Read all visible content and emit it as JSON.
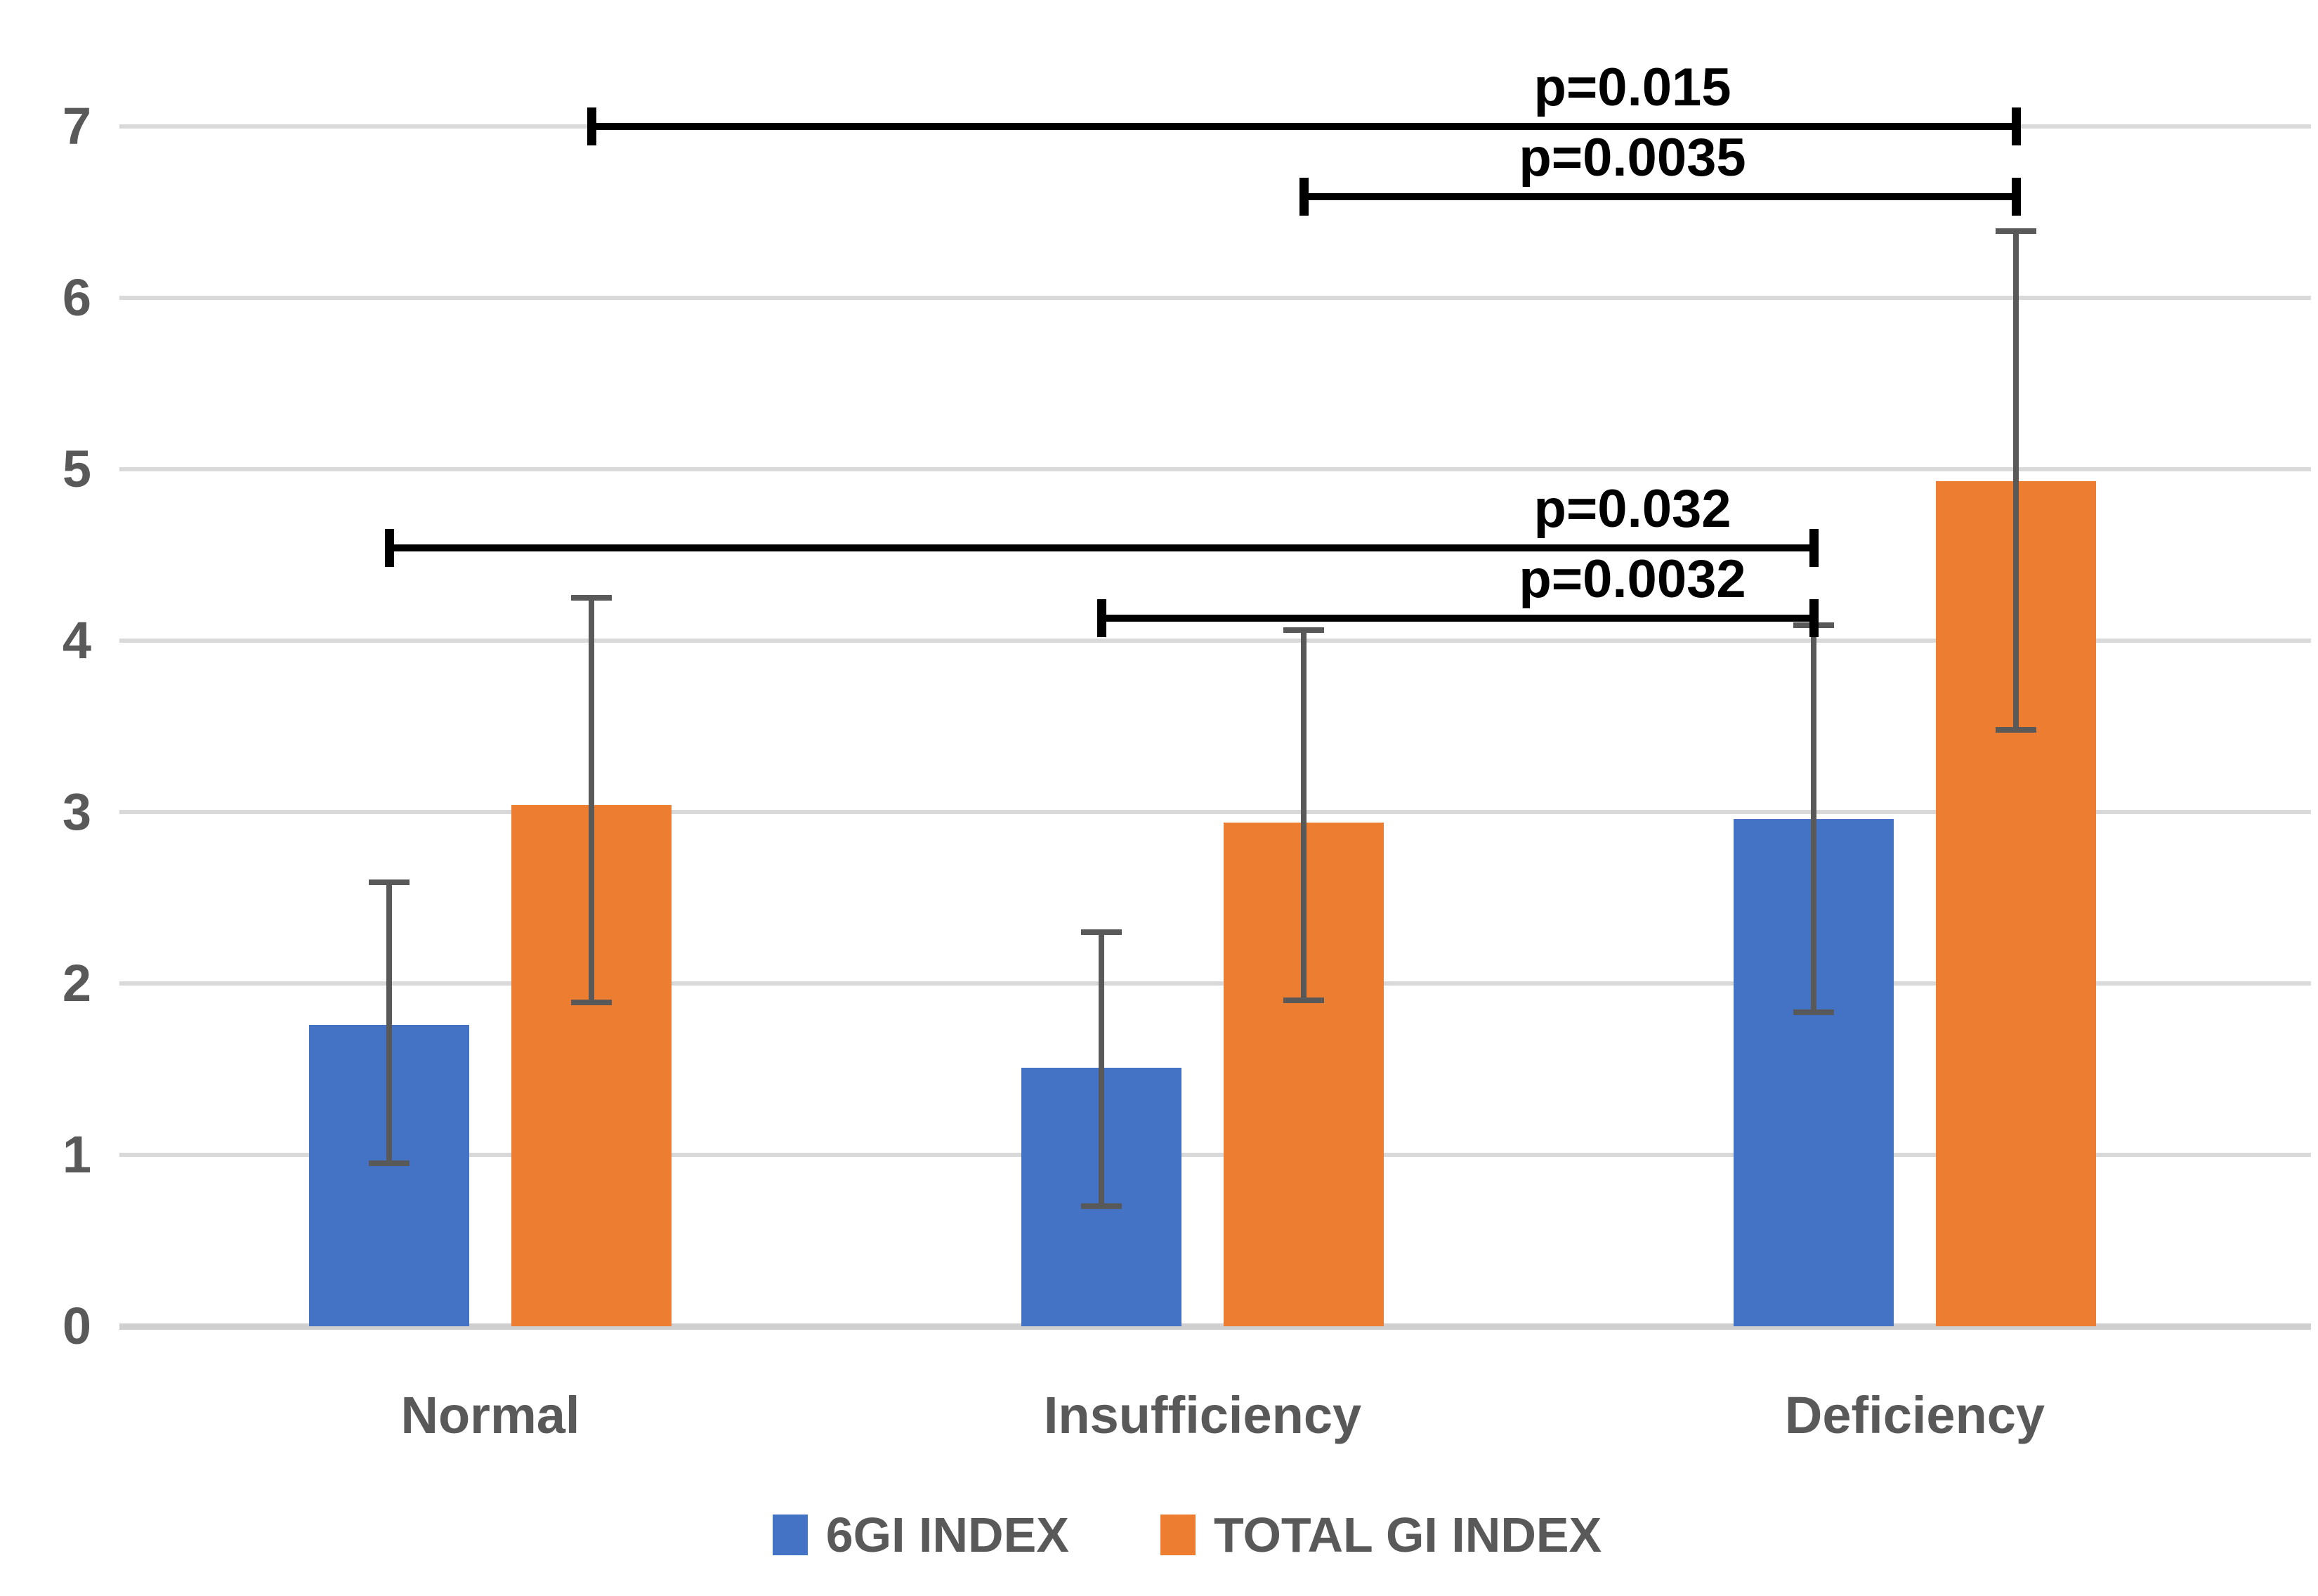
{
  "chart_data": {
    "type": "bar",
    "title": "",
    "xlabel": "",
    "ylabel": "",
    "categories": [
      "Normal",
      "Insufficiency",
      "Deficiency"
    ],
    "series": [
      {
        "name": "6GI INDEX",
        "color": "#4472C4",
        "values": [
          1.76,
          1.51,
          2.96
        ],
        "error_low": [
          0.95,
          0.7,
          1.83
        ],
        "error_high": [
          2.59,
          2.3,
          4.09
        ]
      },
      {
        "name": "TOTAL GI INDEX",
        "color": "#ED7D31",
        "values": [
          3.04,
          2.94,
          4.93
        ],
        "error_low": [
          1.89,
          1.9,
          3.48
        ],
        "error_high": [
          4.25,
          4.06,
          6.39
        ]
      }
    ],
    "ylim": [
      0,
      7
    ],
    "yticks": [
      0,
      1,
      2,
      3,
      4,
      5,
      6,
      7
    ],
    "grid": true,
    "legend_position": "bottom",
    "annotations": [
      {
        "label": "p=0.015",
        "y": 7.0,
        "from_category": 0,
        "from_series": 1,
        "to_category": 2,
        "to_series": 1
      },
      {
        "label": "p=0.0035",
        "y": 6.59,
        "from_category": 1,
        "from_series": 1,
        "to_category": 2,
        "to_series": 1
      },
      {
        "label": "p=0.032",
        "y": 4.54,
        "from_category": 0,
        "from_series": 0,
        "to_category": 2,
        "to_series": 0
      },
      {
        "label": "p=0.0032",
        "y": 4.13,
        "from_category": 1,
        "from_series": 0,
        "to_category": 2,
        "to_series": 0
      }
    ]
  },
  "colors": {
    "series_blue": "#4472C4",
    "series_orange": "#ED7D31",
    "gridline": "#D9D9D9",
    "axis_line": "#CFCFCF",
    "error_bar": "#595959",
    "axis_text": "#595959",
    "annotation_text": "#000000",
    "background": "#FFFFFF"
  }
}
